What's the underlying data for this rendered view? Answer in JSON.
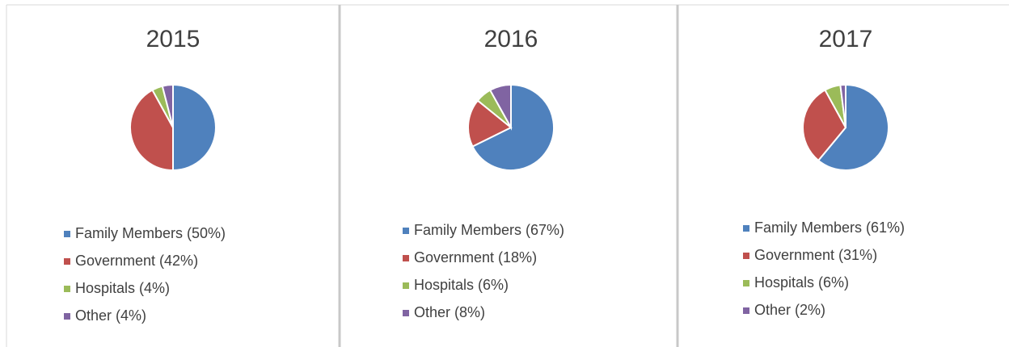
{
  "chart_data": [
    {
      "type": "pie",
      "title": "2015",
      "categories": [
        "Family Members (50%)",
        "Government (42%)",
        "Hospitals (4%)",
        "Other (4%)"
      ],
      "values": [
        50,
        42,
        4,
        4
      ],
      "colors": [
        "#4f81bd",
        "#c0504d",
        "#9bbb59",
        "#8064a2"
      ]
    },
    {
      "type": "pie",
      "title": "2016",
      "categories": [
        "Family Members (67%)",
        "Government (18%)",
        "Hospitals (6%)",
        "Other (8%)"
      ],
      "values": [
        67,
        18,
        6,
        8
      ],
      "colors": [
        "#4f81bd",
        "#c0504d",
        "#9bbb59",
        "#8064a2"
      ]
    },
    {
      "type": "pie",
      "title": "2017",
      "categories": [
        "Family Members (61%)",
        "Government (31%)",
        "Hospitals (6%)",
        "Other (2%)"
      ],
      "values": [
        61,
        31,
        6,
        2
      ],
      "colors": [
        "#4f81bd",
        "#c0504d",
        "#9bbb59",
        "#8064a2"
      ]
    }
  ]
}
